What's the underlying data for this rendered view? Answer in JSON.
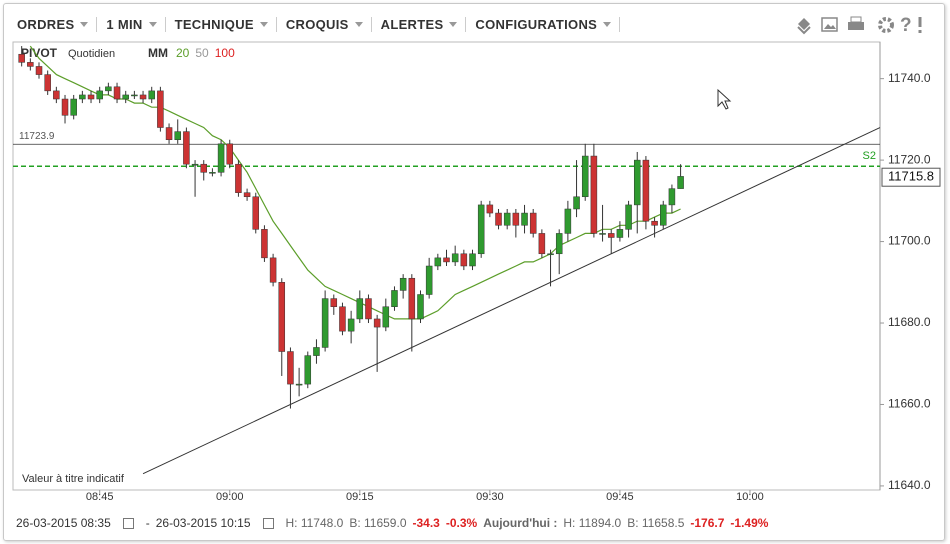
{
  "toolbar": {
    "menus": [
      "ORDRES",
      "1 MIN",
      "TECHNIQUE",
      "CROQUIS",
      "ALERTES",
      "CONFIGURATIONS"
    ]
  },
  "chart_data": {
    "type": "candlestick",
    "title": "PIVOT",
    "subtitle": "Quotidien",
    "ma_label": "MM",
    "ma": [
      {
        "name": "20",
        "color": "#5c9e2a",
        "values": [
          null,
          11748,
          11745,
          11743,
          11741,
          11740,
          11739,
          11738,
          11737,
          11736,
          11736,
          11735,
          11735,
          11734,
          11734,
          11733,
          11733,
          11732,
          11731,
          11730,
          11729,
          11728,
          11726,
          11725,
          11723,
          11720,
          11717,
          11713,
          11709,
          11705,
          11702,
          11699,
          11696,
          11693,
          11691,
          11689,
          11688,
          11687,
          11686,
          11685,
          11684,
          11683,
          11682,
          11681,
          11681,
          11681,
          11681,
          11682,
          11683,
          11685,
          11687,
          11688,
          11689,
          11690,
          11691,
          11692,
          11693,
          11694,
          11695,
          11695,
          11696,
          11697,
          11699,
          11700,
          11701,
          11702,
          11702,
          11703,
          11703,
          11704,
          11704,
          11705,
          11705,
          11706,
          11707,
          11707,
          11708
        ]
      },
      {
        "name": "50",
        "color": "#999999"
      },
      {
        "name": "100",
        "color": "#dd2222"
      }
    ],
    "x": [
      "08:36",
      "08:37",
      "08:38",
      "08:39",
      "08:40",
      "08:41",
      "08:42",
      "08:43",
      "08:44",
      "08:45",
      "08:46",
      "08:47",
      "08:48",
      "08:49",
      "08:50",
      "08:51",
      "08:52",
      "08:53",
      "08:54",
      "08:55",
      "08:56",
      "08:57",
      "08:58",
      "08:59",
      "09:00",
      "09:01",
      "09:02",
      "09:03",
      "09:04",
      "09:05",
      "09:06",
      "09:07",
      "09:08",
      "09:09",
      "09:10",
      "09:11",
      "09:12",
      "09:13",
      "09:14",
      "09:15",
      "09:16",
      "09:17",
      "09:18",
      "09:19",
      "09:20",
      "09:21",
      "09:22",
      "09:23",
      "09:24",
      "09:25",
      "09:26",
      "09:27",
      "09:28",
      "09:29",
      "09:30",
      "09:31",
      "09:32",
      "09:33",
      "09:34",
      "09:35",
      "09:36",
      "09:37",
      "09:38",
      "09:39",
      "09:40",
      "09:41",
      "09:42",
      "09:43",
      "09:44",
      "09:45",
      "09:46",
      "09:47",
      "09:48",
      "09:49",
      "09:50",
      "09:51",
      "09:52"
    ],
    "open": [
      11746,
      11744,
      11743,
      11741,
      11737,
      11735,
      11731,
      11735,
      11736,
      11735,
      11737,
      11738,
      11735,
      11736,
      11736,
      11735,
      11737,
      11728,
      11725,
      11727,
      11719,
      11719,
      11717,
      11717,
      11724,
      11719,
      11712,
      11711,
      11703,
      11696,
      11690,
      11673,
      11665,
      11665,
      11672,
      11674,
      11686,
      11684,
      11678,
      11681,
      11686,
      11681,
      11679,
      11684,
      11688,
      11691,
      11681,
      11687,
      11694,
      11696,
      11695,
      11697,
      11694,
      11697,
      11709,
      11707,
      11704,
      11707,
      11704,
      11707,
      11702,
      11697,
      11697,
      11702,
      11708,
      11711,
      11721,
      11702,
      11702,
      11701,
      11703,
      11709,
      11720,
      11705,
      11704,
      11709,
      11713
    ],
    "high": [
      11748,
      11745,
      11744,
      11742,
      11738,
      11736,
      11736,
      11737,
      11737,
      11738,
      11739,
      11739,
      11737,
      11737,
      11737,
      11738,
      11738,
      11729,
      11730,
      11728,
      11720,
      11720,
      11718,
      11725,
      11725,
      11720,
      11713,
      11712,
      11704,
      11697,
      11691,
      11674,
      11669,
      11673,
      11676,
      11688,
      11687,
      11685,
      11683,
      11688,
      11687,
      11682,
      11686,
      11689,
      11692,
      11692,
      11688,
      11696,
      11697,
      11698,
      11699,
      11698,
      11698,
      11710,
      11710,
      11708,
      11708,
      11708,
      11709,
      11708,
      11703,
      11698,
      11703,
      11710,
      11720,
      11724,
      11724,
      11709,
      11703,
      11705,
      11710,
      11722,
      11721,
      11706,
      11710,
      11714,
      11719
    ],
    "low": [
      11743,
      11742,
      11740,
      11736,
      11734,
      11729,
      11730,
      11734,
      11734,
      11734,
      11736,
      11734,
      11734,
      11735,
      11734,
      11734,
      11727,
      11724,
      11724,
      11718,
      11711,
      11715,
      11716,
      11716,
      11718,
      11711,
      11710,
      11702,
      11695,
      11689,
      11667,
      11659,
      11662,
      11664,
      11670,
      11673,
      11682,
      11677,
      11675,
      11680,
      11680,
      11668,
      11678,
      11683,
      11686,
      11673,
      11680,
      11686,
      11693,
      11694,
      11694,
      11693,
      11693,
      11696,
      11706,
      11703,
      11703,
      11701,
      11702,
      11701,
      11696,
      11689,
      11692,
      11700,
      11706,
      11710,
      11701,
      11700,
      11697,
      11700,
      11701,
      11702,
      11703,
      11701,
      11703,
      11707,
      11713
    ],
    "close": [
      11744,
      11743,
      11741,
      11737,
      11735,
      11731,
      11735,
      11736,
      11735,
      11737,
      11738,
      11735,
      11736,
      11736,
      11735,
      11737,
      11728,
      11725,
      11727,
      11719,
      11719,
      11717,
      11717,
      11724,
      11719,
      11712,
      11711,
      11703,
      11696,
      11690,
      11673,
      11665,
      11665,
      11672,
      11674,
      11686,
      11684,
      11678,
      11681,
      11686,
      11681,
      11679,
      11684,
      11688,
      11691,
      11681,
      11687,
      11694,
      11696,
      11695,
      11697,
      11694,
      11697,
      11709,
      11707,
      11704,
      11707,
      11704,
      11707,
      11702,
      11697,
      11697,
      11702,
      11708,
      11711,
      11721,
      11702,
      11702,
      11701,
      11703,
      11709,
      11720,
      11705,
      11704,
      11709,
      11713,
      11716
    ],
    "up_color": "#2f9a2f",
    "down_color": "#cc3333",
    "xlim": [
      "08:35",
      "10:15"
    ],
    "xticks": [
      "08:45",
      "09:00",
      "09:15",
      "09:30",
      "09:45",
      "10:00"
    ],
    "ylim": [
      11639,
      11749
    ],
    "yticks": [
      {
        "value": 11640,
        "label": "11640.0"
      },
      {
        "value": 11660,
        "label": "11660.0"
      },
      {
        "value": 11680,
        "label": "11680.0"
      },
      {
        "value": 11700,
        "label": "11700.0"
      },
      {
        "value": 11720,
        "label": "11720.0"
      },
      {
        "value": 11740,
        "label": "11740.0"
      }
    ],
    "pivot": 11723.9,
    "s2": {
      "name": "S2",
      "value": 11718.5,
      "color": "#22a022"
    },
    "last_price": 11715.8,
    "trendline": {
      "x": [
        "08:50",
        "10:15"
      ],
      "y": [
        11643,
        11728
      ]
    },
    "note": "Valeur à titre indicatif"
  },
  "footer": {
    "from": "26-03-2015 08:35",
    "dash": "-",
    "to": "26-03-2015 10:15",
    "high": "H: 11748.0",
    "low": "B: 11659.0",
    "change": "-34.3",
    "change_pct": "-0.3%",
    "today": "Aujourd'hui :",
    "today_high": "H: 11894.0",
    "today_low": "B: 11658.5",
    "today_change": "-176.7",
    "today_change_pct": "-1.49%"
  }
}
